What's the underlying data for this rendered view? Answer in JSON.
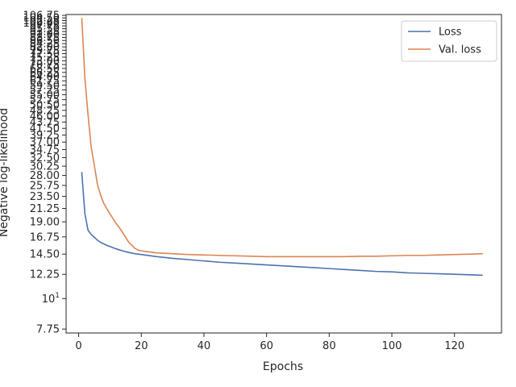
{
  "chart_data": {
    "type": "line",
    "title": "",
    "xlabel": "Epochs",
    "ylabel": "Negative log-likelihood",
    "y_scale": "log",
    "xlim": [
      -4,
      135
    ],
    "ylim": [
      7.5,
      107.5
    ],
    "x_ticks": [
      0,
      20,
      40,
      60,
      80,
      100,
      120
    ],
    "y_ticks": [
      {
        "value": 7.75,
        "label": "7.75"
      },
      {
        "value": 10,
        "label": "10^1"
      },
      {
        "value": 12.25,
        "label": "12.25"
      },
      {
        "value": 14.5,
        "label": "14.50"
      },
      {
        "value": 16.75,
        "label": "16.75"
      },
      {
        "value": 19.0,
        "label": "19.00"
      },
      {
        "value": 21.25,
        "label": "21.25"
      },
      {
        "value": 23.5,
        "label": "23.50"
      },
      {
        "value": 25.75,
        "label": "25.75"
      },
      {
        "value": 28.0,
        "label": "28.00"
      },
      {
        "value": 30.25,
        "label": "30.25"
      },
      {
        "value": 32.5,
        "label": "32.50"
      },
      {
        "value": 34.75,
        "label": "34.75"
      },
      {
        "value": 37.0,
        "label": "37.00"
      },
      {
        "value": 39.25,
        "label": "39.25"
      },
      {
        "value": 41.5,
        "label": "41.50"
      },
      {
        "value": 43.75,
        "label": "43.75"
      },
      {
        "value": 46.0,
        "label": "46.00"
      },
      {
        "value": 48.25,
        "label": "48.25"
      },
      {
        "value": 50.5,
        "label": "50.50"
      },
      {
        "value": 52.75,
        "label": "52.75"
      },
      {
        "value": 55.0,
        "label": "55.00"
      },
      {
        "value": 57.25,
        "label": "57.25"
      },
      {
        "value": 59.5,
        "label": "59.50"
      },
      {
        "value": 61.75,
        "label": "61.75"
      },
      {
        "value": 64.0,
        "label": "64.00"
      },
      {
        "value": 66.25,
        "label": "66.25"
      },
      {
        "value": 68.5,
        "label": "68.50"
      },
      {
        "value": 70.75,
        "label": "70.75"
      },
      {
        "value": 73.0,
        "label": "73.00"
      },
      {
        "value": 75.25,
        "label": "75.25"
      },
      {
        "value": 77.5,
        "label": "77.50"
      },
      {
        "value": 79.75,
        "label": "79.75"
      },
      {
        "value": 82.0,
        "label": "82.00"
      },
      {
        "value": 84.25,
        "label": "84.25"
      },
      {
        "value": 86.5,
        "label": "86.50"
      },
      {
        "value": 88.75,
        "label": "88.75"
      },
      {
        "value": 91.0,
        "label": "91.00"
      },
      {
        "value": 93.25,
        "label": "93.25"
      },
      {
        "value": 95.5,
        "label": "95.50"
      },
      {
        "value": 97.75,
        "label": "97.75"
      },
      {
        "value": 100.0,
        "label": "100.00"
      },
      {
        "value": 102.25,
        "label": "102.25"
      },
      {
        "value": 104.5,
        "label": "104.50"
      },
      {
        "value": 106.75,
        "label": "106.75"
      }
    ],
    "grid": false,
    "legend_position": "top-right",
    "series": [
      {
        "name": "Loss",
        "color": "#4c72b0",
        "x": [
          1,
          2,
          3,
          4,
          5,
          6,
          7,
          8,
          9,
          10,
          12,
          14,
          16,
          18,
          20,
          25,
          30,
          35,
          40,
          45,
          50,
          55,
          60,
          65,
          70,
          75,
          80,
          85,
          90,
          95,
          100,
          105,
          110,
          115,
          120,
          125,
          129
        ],
        "values": [
          28.8,
          20.3,
          17.7,
          17.1,
          16.7,
          16.3,
          16.0,
          15.8,
          15.6,
          15.45,
          15.15,
          14.9,
          14.7,
          14.55,
          14.45,
          14.2,
          14.0,
          13.85,
          13.7,
          13.55,
          13.45,
          13.35,
          13.25,
          13.15,
          13.05,
          12.95,
          12.85,
          12.75,
          12.65,
          12.55,
          12.5,
          12.4,
          12.35,
          12.3,
          12.25,
          12.2,
          12.15
        ]
      },
      {
        "name": "Val. loss",
        "color": "#dd8452",
        "x": [
          1,
          2,
          3,
          4,
          5,
          6,
          7,
          8,
          9,
          10,
          11,
          12,
          13,
          14,
          15,
          16,
          17,
          18,
          19,
          20,
          22,
          25,
          30,
          35,
          40,
          45,
          50,
          55,
          60,
          65,
          70,
          75,
          80,
          85,
          90,
          95,
          100,
          105,
          110,
          115,
          120,
          125,
          129
        ],
        "values": [
          104.5,
          63.0,
          46.5,
          35.5,
          30.5,
          26.0,
          23.8,
          22.2,
          21.2,
          20.3,
          19.5,
          18.7,
          18.1,
          17.4,
          16.7,
          16.0,
          15.6,
          15.2,
          15.0,
          14.9,
          14.8,
          14.65,
          14.55,
          14.45,
          14.4,
          14.35,
          14.3,
          14.25,
          14.2,
          14.2,
          14.2,
          14.2,
          14.2,
          14.2,
          14.25,
          14.25,
          14.3,
          14.35,
          14.35,
          14.4,
          14.45,
          14.5,
          14.55
        ]
      }
    ]
  }
}
